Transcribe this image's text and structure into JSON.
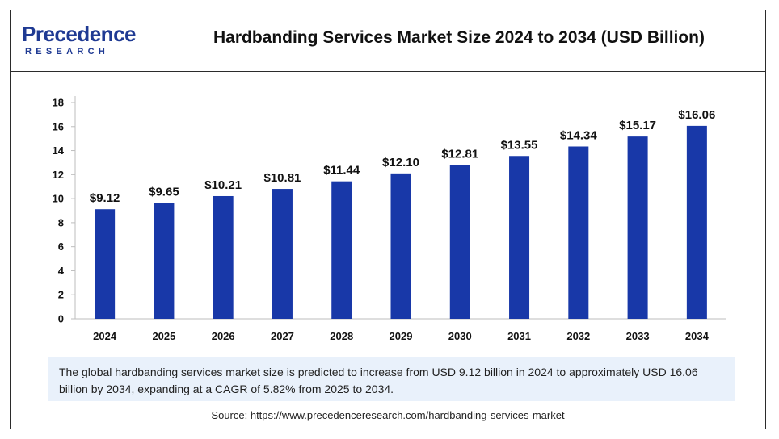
{
  "header": {
    "logo_main": "Precedence",
    "logo_sub": "RESEARCH",
    "title": "Hardbanding Services Market Size 2024 to 2034 (USD Billion)"
  },
  "chart_data": {
    "type": "bar",
    "title": "Hardbanding Services Market Size 2024 to 2034 (USD Billion)",
    "xlabel": "",
    "ylabel": "",
    "categories": [
      "2024",
      "2025",
      "2026",
      "2027",
      "2028",
      "2029",
      "2030",
      "2031",
      "2032",
      "2033",
      "2034"
    ],
    "values": [
      9.12,
      9.65,
      10.21,
      10.81,
      11.44,
      12.1,
      12.81,
      13.55,
      14.34,
      15.17,
      16.06
    ],
    "value_labels": [
      "$9.12",
      "$9.65",
      "$10.21",
      "$10.81",
      "$11.44",
      "$12.10",
      "$12.81",
      "$13.55",
      "$14.34",
      "$15.17",
      "$16.06"
    ],
    "ylim": [
      0,
      18
    ],
    "yticks": [
      0,
      2,
      4,
      6,
      8,
      10,
      12,
      14,
      16,
      18
    ],
    "grid": false,
    "legend": "none",
    "bar_color": "#1838a8"
  },
  "note": "The global hardbanding services market size is predicted to increase from USD 9.12 billion in 2024 to approximately USD 16.06 billion by 2034, expanding at a CAGR of 5.82% from 2025 to 2034.",
  "source": "Source: https://www.precedenceresearch.com/hardbanding-services-market"
}
